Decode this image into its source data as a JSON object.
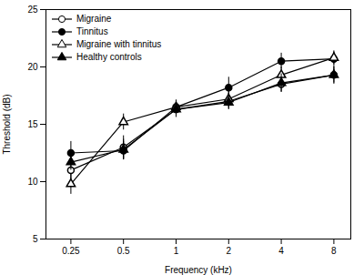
{
  "chart_data": {
    "type": "line",
    "xlabel": "Frequency (kHz)",
    "ylabel": "Threshold (dB)",
    "x": [
      0.25,
      0.5,
      1,
      2,
      4,
      8
    ],
    "series": [
      {
        "name": "Migraine",
        "color": "#000000",
        "marker": "open-circle",
        "line_style": "solid",
        "values": [
          11.0,
          13.0,
          16.3,
          17.0,
          18.5,
          19.3
        ],
        "yerr": [
          0.8,
          1.0,
          0.7,
          0.7,
          0.7,
          0.8
        ]
      },
      {
        "name": "Tinnitus",
        "color": "#000000",
        "marker": "filled-circle",
        "line_style": "solid",
        "values": [
          12.5,
          12.7,
          16.5,
          18.2,
          20.5,
          20.7
        ],
        "yerr": [
          1.0,
          0.8,
          0.6,
          0.9,
          0.7,
          0.6
        ]
      },
      {
        "name": "Migraine with tinnitus",
        "color": "#000000",
        "marker": "open-triangle",
        "line_style": "solid",
        "values": [
          9.8,
          15.2,
          16.5,
          17.2,
          19.3,
          20.8
        ],
        "yerr": [
          0.9,
          0.7,
          0.6,
          0.7,
          0.7,
          0.6
        ]
      },
      {
        "name": "Healthy controls",
        "color": "#000000",
        "marker": "filled-triangle",
        "line_style": "solid",
        "values": [
          11.7,
          12.8,
          16.3,
          16.9,
          18.6,
          19.3
        ],
        "yerr": [
          0.7,
          0.9,
          0.6,
          0.6,
          0.8,
          0.7
        ]
      }
    ],
    "xlim": [
      0.18,
      10
    ],
    "xticks": [
      0.25,
      0.5,
      1,
      2,
      4,
      8
    ],
    "ylim": [
      5,
      25
    ],
    "yticks": [
      5,
      10,
      15,
      20,
      25
    ],
    "log": "x",
    "grid": false,
    "legend": "upper-left"
  }
}
